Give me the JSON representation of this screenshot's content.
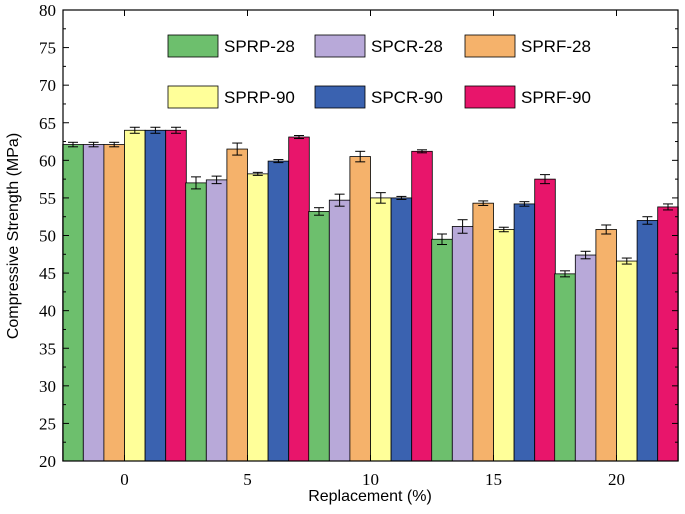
{
  "chart_data": {
    "type": "bar",
    "title": "",
    "xlabel": "Replacement (%)",
    "ylabel": "Compressive Strength (MPa)",
    "ylim": [
      20,
      80
    ],
    "yticks": [
      20,
      25,
      30,
      35,
      40,
      45,
      50,
      55,
      60,
      65,
      70,
      75,
      80
    ],
    "categories": [
      "0",
      "5",
      "10",
      "15",
      "20"
    ],
    "series": [
      {
        "name": "SPRP-28",
        "color": "#6dbf6d",
        "values": [
          62.1,
          57.0,
          53.2,
          49.5,
          44.9
        ],
        "errors": [
          0.3,
          0.8,
          0.5,
          0.7,
          0.4
        ]
      },
      {
        "name": "SPCR-28",
        "color": "#b8a9d9",
        "values": [
          62.1,
          57.4,
          54.7,
          51.2,
          47.4
        ],
        "errors": [
          0.3,
          0.5,
          0.8,
          0.9,
          0.5
        ]
      },
      {
        "name": "SPRF-28",
        "color": "#f5b26b",
        "values": [
          62.1,
          61.5,
          60.5,
          54.3,
          50.8
        ],
        "errors": [
          0.3,
          0.8,
          0.7,
          0.3,
          0.6
        ]
      },
      {
        "name": "SPRP-90",
        "color": "#ffff99",
        "values": [
          64.0,
          58.2,
          55.0,
          50.8,
          46.6
        ],
        "errors": [
          0.4,
          0.2,
          0.7,
          0.3,
          0.4
        ]
      },
      {
        "name": "SPCR-90",
        "color": "#3a62b0",
        "values": [
          64.0,
          59.9,
          55.0,
          54.2,
          52.0
        ],
        "errors": [
          0.4,
          0.2,
          0.2,
          0.3,
          0.5
        ]
      },
      {
        "name": "SPRF-90",
        "color": "#e8156b",
        "values": [
          64.0,
          63.1,
          61.2,
          57.5,
          53.8
        ],
        "errors": [
          0.4,
          0.2,
          0.2,
          0.6,
          0.4
        ]
      }
    ],
    "legend_position": "top"
  }
}
